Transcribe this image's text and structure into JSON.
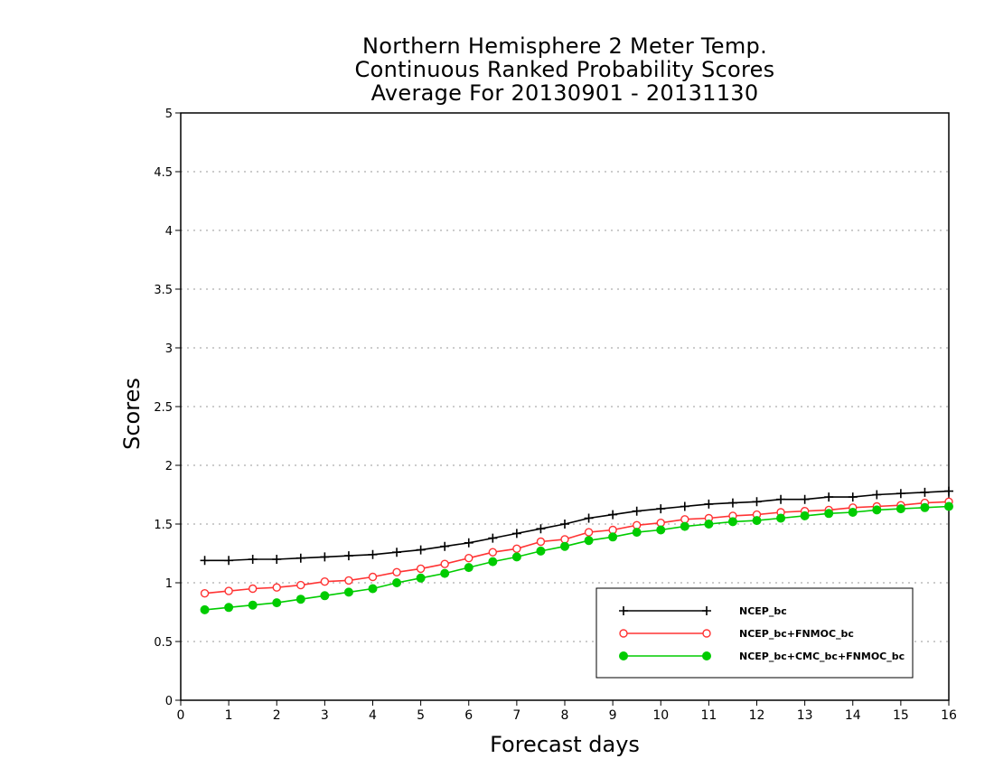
{
  "chart_data": {
    "type": "line",
    "title_lines": [
      "Northern Hemisphere 2 Meter Temp.",
      "Continuous Ranked Probability Scores",
      "Average For 20130901 - 20131130"
    ],
    "xlabel": "Forecast days",
    "ylabel": "Scores",
    "xlim": [
      0,
      16
    ],
    "ylim": [
      0,
      5
    ],
    "x_ticks": [
      "0",
      "1",
      "2",
      "3",
      "4",
      "5",
      "6",
      "7",
      "8",
      "9",
      "10",
      "11",
      "12",
      "13",
      "14",
      "15",
      "16"
    ],
    "y_ticks": [
      "0",
      "0.5",
      "1",
      "1.5",
      "2",
      "2.5",
      "3",
      "3.5",
      "4",
      "4.5",
      "5"
    ],
    "grid": "horizontal-dotted",
    "legend_placement": "bottom-right",
    "x": [
      0.5,
      1,
      1.5,
      2,
      2.5,
      3,
      3.5,
      4,
      4.5,
      5,
      5.5,
      6,
      6.5,
      7,
      7.5,
      8,
      8.5,
      9,
      9.5,
      10,
      10.5,
      11,
      11.5,
      12,
      12.5,
      13,
      13.5,
      14,
      14.5,
      15,
      15.5,
      16
    ],
    "series": [
      {
        "name": "NCEP_bc",
        "color": "#000000",
        "marker": "plus",
        "values": [
          1.19,
          1.19,
          1.2,
          1.2,
          1.21,
          1.22,
          1.23,
          1.24,
          1.26,
          1.28,
          1.31,
          1.34,
          1.38,
          1.42,
          1.46,
          1.5,
          1.55,
          1.58,
          1.61,
          1.63,
          1.65,
          1.67,
          1.68,
          1.69,
          1.71,
          1.71,
          1.73,
          1.73,
          1.75,
          1.76,
          1.77,
          1.78
        ]
      },
      {
        "name": "NCEP_bc+FNMOC_bc",
        "color": "#ff3333",
        "marker": "open-circle",
        "values": [
          0.91,
          0.93,
          0.95,
          0.96,
          0.98,
          1.01,
          1.02,
          1.05,
          1.09,
          1.12,
          1.16,
          1.21,
          1.26,
          1.29,
          1.35,
          1.37,
          1.43,
          1.45,
          1.49,
          1.51,
          1.54,
          1.55,
          1.57,
          1.58,
          1.6,
          1.61,
          1.62,
          1.64,
          1.65,
          1.66,
          1.68,
          1.69
        ]
      },
      {
        "name": "NCEP_bc+CMC_bc+FNMOC_bc",
        "color": "#00cc00",
        "marker": "filled-circle",
        "values": [
          0.77,
          0.79,
          0.81,
          0.83,
          0.86,
          0.89,
          0.92,
          0.95,
          1.0,
          1.04,
          1.08,
          1.13,
          1.18,
          1.22,
          1.27,
          1.31,
          1.36,
          1.39,
          1.43,
          1.45,
          1.48,
          1.5,
          1.52,
          1.53,
          1.55,
          1.57,
          1.59,
          1.6,
          1.62,
          1.63,
          1.64,
          1.65
        ]
      }
    ]
  }
}
